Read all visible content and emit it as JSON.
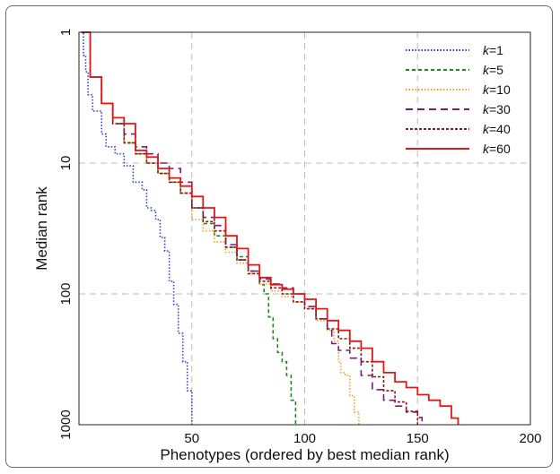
{
  "chart_data": {
    "type": "line",
    "xlabel": "Phenotypes (ordered by best median rank)",
    "ylabel": "Median rank",
    "xlim": [
      0,
      200
    ],
    "ylim": [
      1,
      1000
    ],
    "yscale": "log",
    "y_inverted": true,
    "xticks": [
      "50",
      "100",
      "150",
      "200"
    ],
    "yticks": [
      "1",
      "10",
      "100",
      "1000"
    ],
    "grid": true,
    "legend_position": "top-right",
    "series": [
      {
        "name": "k=1",
        "color": "#2f3fd0",
        "dash": "1.5,2",
        "x": [
          1,
          2,
          3,
          4,
          6,
          8,
          10,
          12,
          14,
          16,
          18,
          20,
          22,
          24,
          26,
          28,
          30,
          32,
          34,
          36,
          38,
          40,
          42,
          44,
          46,
          48,
          50
        ],
        "y": [
          1,
          1.5,
          2.0,
          3.0,
          4.0,
          4.0,
          6.0,
          7.5,
          7.5,
          8.5,
          8.5,
          10.5,
          10.5,
          14,
          14,
          16,
          22,
          23,
          27,
          37,
          47,
          80,
          120,
          200,
          330,
          550,
          1000
        ]
      },
      {
        "name": "k=5",
        "color": "#1a8a1a",
        "dash": "4,3",
        "x": [
          1,
          5,
          10,
          15,
          20,
          25,
          30,
          35,
          40,
          45,
          50,
          55,
          60,
          65,
          70,
          75,
          80,
          82,
          84,
          86,
          88,
          90,
          92,
          94,
          96
        ],
        "y": [
          1,
          2.2,
          3.5,
          5,
          7,
          8.5,
          10,
          12,
          14,
          17,
          22,
          29,
          36,
          44,
          52,
          67,
          85,
          100,
          150,
          220,
          280,
          330,
          420,
          650,
          1000
        ]
      },
      {
        "name": "k=10",
        "color": "#f0a020",
        "dash": "1.5,2",
        "x": [
          1,
          5,
          10,
          15,
          20,
          25,
          30,
          35,
          40,
          45,
          50,
          55,
          60,
          65,
          70,
          75,
          80,
          85,
          90,
          95,
          100,
          105,
          110,
          113,
          115,
          116,
          118,
          120,
          122,
          124
        ],
        "y": [
          1,
          2.2,
          3.5,
          5,
          7,
          8.5,
          10,
          12,
          14,
          17,
          27,
          33,
          40,
          48,
          58,
          70,
          84,
          95,
          105,
          115,
          130,
          160,
          190,
          230,
          330,
          400,
          420,
          600,
          800,
          1000
        ]
      },
      {
        "name": "k=30",
        "color": "#7a1a7a",
        "dash": "8,5",
        "x": [
          1,
          5,
          10,
          15,
          20,
          25,
          30,
          35,
          40,
          45,
          50,
          55,
          60,
          65,
          70,
          75,
          80,
          85,
          90,
          95,
          100,
          105,
          110,
          112,
          115,
          120,
          125,
          130,
          135,
          140,
          145,
          150,
          152
        ],
        "y": [
          1,
          2.2,
          3.5,
          5,
          6,
          7.5,
          8.5,
          10,
          11,
          14,
          22,
          26,
          30,
          42,
          55,
          67,
          77,
          84,
          90,
          100,
          125,
          155,
          190,
          240,
          270,
          310,
          420,
          540,
          650,
          720,
          800,
          880,
          1000
        ]
      },
      {
        "name": "k=40",
        "color": "#8a1a1a",
        "dash": "3,2",
        "x": [
          1,
          5,
          10,
          15,
          20,
          25,
          30,
          35,
          40,
          45,
          50,
          55,
          60,
          65,
          70,
          75,
          80,
          85,
          90,
          95,
          100,
          105,
          110,
          115,
          120,
          125,
          130,
          135,
          140,
          145,
          150
        ],
        "y": [
          1,
          2.2,
          3.5,
          5,
          7,
          8.5,
          10,
          12,
          14,
          17,
          22,
          28,
          33,
          44,
          55,
          70,
          80,
          90,
          100,
          115,
          130,
          155,
          185,
          220,
          260,
          330,
          430,
          550,
          670,
          790,
          1000
        ]
      },
      {
        "name": "k=60",
        "color": "#e01818",
        "dash": "",
        "x": [
          1,
          5,
          10,
          15,
          20,
          25,
          30,
          35,
          40,
          45,
          50,
          55,
          60,
          65,
          70,
          75,
          80,
          85,
          90,
          95,
          100,
          105,
          110,
          115,
          120,
          125,
          130,
          135,
          140,
          145,
          150,
          155,
          160,
          165,
          168
        ],
        "y": [
          1,
          2.2,
          3.5,
          4.5,
          5,
          8,
          9,
          11,
          13,
          15,
          18,
          22,
          26,
          36,
          45,
          60,
          75,
          85,
          92,
          100,
          110,
          130,
          160,
          190,
          230,
          260,
          330,
          400,
          470,
          520,
          590,
          650,
          720,
          890,
          1000
        ]
      }
    ]
  }
}
